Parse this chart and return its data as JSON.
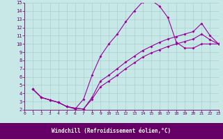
{
  "xlabel": "Windchill (Refroidissement éolien,°C)",
  "bg_color": "#c8e8e8",
  "grid_color": "#a8d0d0",
  "line_color": "#990099",
  "xlim": [
    0,
    23
  ],
  "ylim": [
    2,
    15
  ],
  "xticks": [
    0,
    1,
    2,
    3,
    4,
    5,
    6,
    7,
    8,
    9,
    10,
    11,
    12,
    13,
    14,
    15,
    16,
    17,
    18,
    19,
    20,
    21,
    22,
    23
  ],
  "yticks": [
    2,
    3,
    4,
    5,
    6,
    7,
    8,
    9,
    10,
    11,
    12,
    13,
    14,
    15
  ],
  "curve1_x": [
    1,
    2,
    3,
    4,
    5,
    6,
    7,
    8,
    9,
    10,
    11,
    12,
    13,
    14,
    15,
    16,
    17,
    18,
    19,
    20,
    21,
    22,
    23
  ],
  "curve1_y": [
    4.5,
    3.5,
    3.2,
    2.9,
    2.4,
    2.1,
    3.3,
    6.2,
    8.5,
    10.0,
    11.2,
    12.7,
    14.0,
    15.1,
    15.3,
    14.6,
    13.2,
    10.2,
    9.5,
    9.5,
    10.0,
    10.0,
    10.0
  ],
  "curve2_x": [
    1,
    2,
    3,
    4,
    5,
    6,
    7,
    8,
    9,
    10,
    11,
    12,
    13,
    14,
    15,
    16,
    17,
    18,
    19,
    20,
    21,
    22,
    23
  ],
  "curve2_y": [
    4.5,
    3.5,
    3.2,
    2.9,
    2.4,
    2.2,
    2.1,
    3.5,
    5.5,
    6.2,
    7.0,
    7.8,
    8.5,
    9.2,
    9.7,
    10.2,
    10.6,
    10.9,
    11.2,
    11.5,
    12.5,
    11.0,
    10.0
  ],
  "curve3_x": [
    1,
    2,
    3,
    4,
    5,
    6,
    7,
    8,
    9,
    10,
    11,
    12,
    13,
    14,
    15,
    16,
    17,
    18,
    19,
    20,
    21,
    22,
    23
  ],
  "curve3_y": [
    4.5,
    3.5,
    3.2,
    2.9,
    2.4,
    2.2,
    2.1,
    3.3,
    4.8,
    5.5,
    6.2,
    7.0,
    7.7,
    8.4,
    8.9,
    9.3,
    9.7,
    10.0,
    10.3,
    10.6,
    11.2,
    10.5,
    10.0
  ],
  "bottom_bar_color": "#660066",
  "bottom_bar_height": 0.115,
  "spine_color": "#660066",
  "tick_color": "#660066",
  "label_color": "#660066",
  "tick_fontsize": 5,
  "xlabel_fontsize": 5.5
}
